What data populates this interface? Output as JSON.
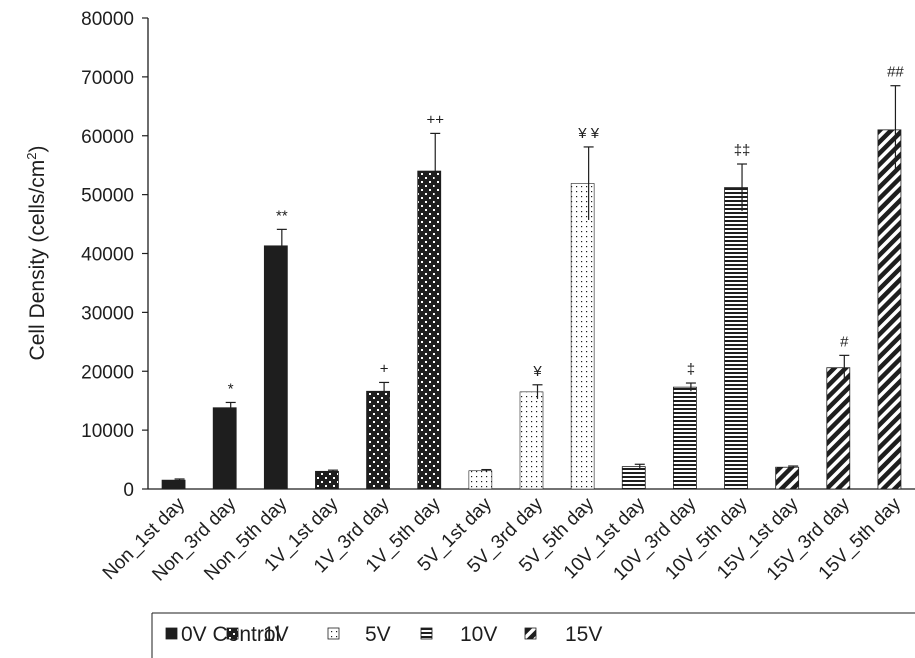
{
  "chart_data": {
    "type": "bar",
    "title": "",
    "xlabel": "",
    "ylabel": "Cell Density (cells/cm²)",
    "ylabel_main": "Cell Density (cells/cm",
    "ylabel_sup": "2",
    "ylabel_close": ")",
    "ylim": [
      0,
      80000
    ],
    "yticks": [
      0,
      10000,
      20000,
      30000,
      40000,
      50000,
      60000,
      70000,
      80000
    ],
    "ytick_labels": [
      "0",
      "10000",
      "20000",
      "30000",
      "40000",
      "50000",
      "60000",
      "70000",
      "80000"
    ],
    "grid": false,
    "legend_position": "bottom",
    "categories": [
      "Non_1st day",
      "Non_3rd day",
      "Non_5th day",
      "1V_1st day",
      "1V_3rd day",
      "1V_5th day",
      "5V_1st day",
      "5V_3rd day",
      "5V_5th day",
      "10V_1st day",
      "10V_3rd day",
      "10V_5th day",
      "15V_1st day",
      "15V_3rd day",
      "15V_5th day"
    ],
    "values": [
      1500,
      13800,
      41300,
      3000,
      16600,
      54000,
      3100,
      16500,
      51900,
      3800,
      17300,
      51200,
      3700,
      20600,
      61000
    ],
    "errors": [
      200,
      900,
      2800,
      200,
      1500,
      6400,
      200,
      1200,
      6200,
      400,
      700,
      4000,
      200,
      2100,
      7500
    ],
    "series_index": [
      0,
      0,
      0,
      1,
      1,
      1,
      2,
      2,
      2,
      3,
      3,
      3,
      4,
      4,
      4
    ],
    "annotations": [
      "",
      "*",
      "**",
      "",
      "+",
      "++",
      "",
      "¥",
      "¥ ¥",
      "",
      "‡",
      "‡‡",
      "",
      "#",
      "##"
    ],
    "series": [
      {
        "name": "0V Control",
        "pattern": "solid"
      },
      {
        "name": "1V",
        "pattern": "checker"
      },
      {
        "name": "5V",
        "pattern": "dots"
      },
      {
        "name": "10V",
        "pattern": "horizontal-lines"
      },
      {
        "name": "15V",
        "pattern": "diagonal-stripes"
      }
    ],
    "colors": {
      "bar": "#1e1e1e",
      "background": "#ffffff"
    }
  }
}
